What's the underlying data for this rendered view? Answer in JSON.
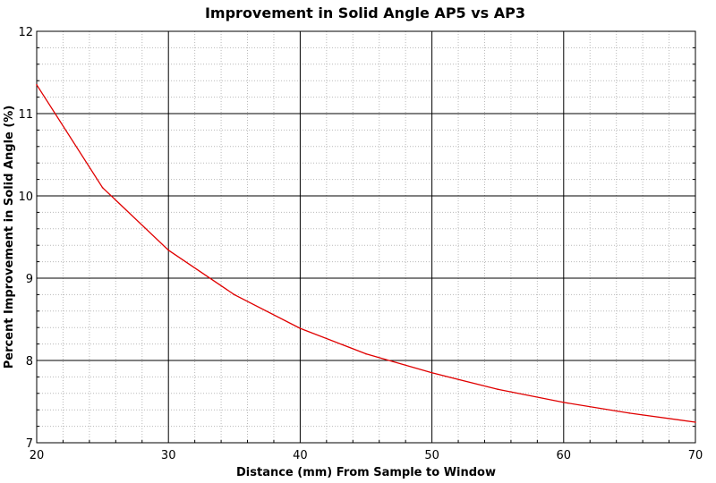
{
  "chart_data": {
    "type": "line",
    "title": "Improvement in Solid Angle AP5 vs AP3",
    "xlabel": "Distance (mm) From Sample to Window",
    "ylabel": "Percent Improvement in Solid Angle (%)",
    "xlim": [
      20,
      70
    ],
    "ylim": [
      7,
      12
    ],
    "xticks": [
      20,
      30,
      40,
      50,
      60,
      70
    ],
    "yticks": [
      7,
      8,
      9,
      10,
      11,
      12
    ],
    "grid": true,
    "legend": "none",
    "series": [
      {
        "color": "#e00000",
        "x": [
          20,
          25,
          30,
          35,
          40,
          45,
          50,
          55,
          60,
          65,
          70
        ],
        "y": [
          11.35,
          10.1,
          9.34,
          8.8,
          8.39,
          8.08,
          7.85,
          7.65,
          7.49,
          7.36,
          7.25
        ]
      }
    ]
  }
}
